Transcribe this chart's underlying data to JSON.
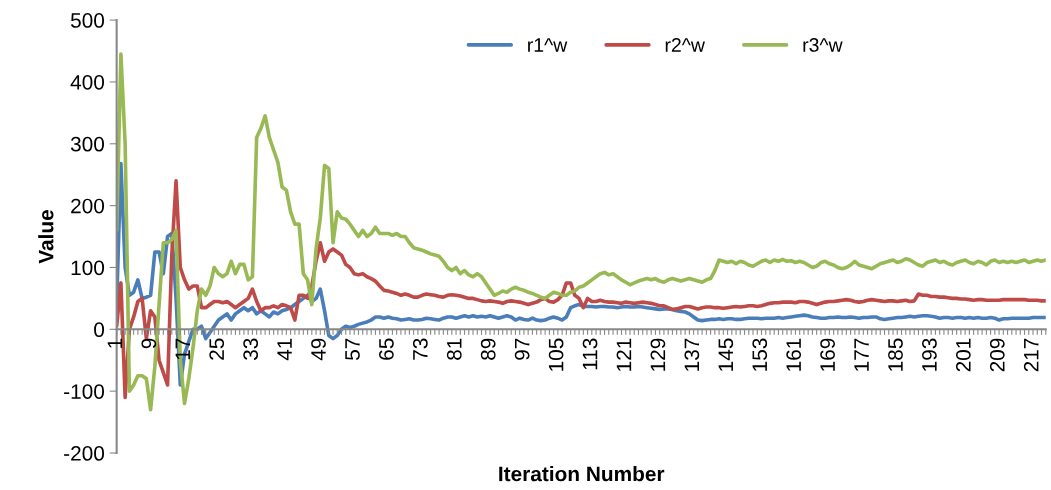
{
  "chart_data": {
    "type": "line",
    "xlabel": "Iteration Number",
    "ylabel": "Value",
    "categories": [
      "1",
      null,
      null,
      null,
      null,
      null,
      null,
      null,
      "9",
      null,
      null,
      null,
      null,
      null,
      null,
      null,
      "17",
      null,
      null,
      null,
      null,
      null,
      null,
      null,
      "25",
      null,
      null,
      null,
      null,
      null,
      null,
      null,
      "33",
      null,
      null,
      null,
      null,
      null,
      null,
      null,
      "41",
      null,
      null,
      null,
      null,
      null,
      null,
      null,
      "49",
      null,
      null,
      null,
      null,
      null,
      null,
      null,
      "57",
      null,
      null,
      null,
      null,
      null,
      null,
      null,
      "65",
      null,
      null,
      null,
      null,
      null,
      null,
      null,
      "73",
      null,
      null,
      null,
      null,
      null,
      null,
      null,
      "81",
      null,
      null,
      null,
      null,
      null,
      null,
      null,
      "89",
      null,
      null,
      null,
      null,
      null,
      null,
      null,
      "97",
      null,
      null,
      null,
      null,
      null,
      null,
      null,
      "105",
      null,
      null,
      null,
      null,
      null,
      null,
      null,
      "113",
      null,
      null,
      null,
      null,
      null,
      null,
      null,
      "121",
      null,
      null,
      null,
      null,
      null,
      null,
      null,
      "129",
      null,
      null,
      null,
      null,
      null,
      null,
      null,
      "137",
      null,
      null,
      null,
      null,
      null,
      null,
      null,
      "145",
      null,
      null,
      null,
      null,
      null,
      null,
      null,
      "153",
      null,
      null,
      null,
      null,
      null,
      null,
      null,
      "161",
      null,
      null,
      null,
      null,
      null,
      null,
      null,
      "169",
      null,
      null,
      null,
      null,
      null,
      null,
      null,
      "177",
      null,
      null,
      null,
      null,
      null,
      null,
      null,
      "185",
      null,
      null,
      null,
      null,
      null,
      null,
      null,
      "193",
      null,
      null,
      null,
      null,
      null,
      null,
      null,
      "201",
      null,
      null,
      null,
      null,
      null,
      null,
      null,
      "209",
      null,
      null,
      null,
      null,
      null,
      null,
      null,
      "217",
      null,
      null,
      null
    ],
    "series": [
      {
        "name": "r1^w",
        "color": "#4a7ebb",
        "values": [
          42,
          268,
          100,
          55,
          60,
          80,
          50,
          52,
          55,
          125,
          125,
          90,
          150,
          155,
          50,
          -90,
          -40,
          -20,
          0,
          0,
          5,
          -15,
          -5,
          5,
          15,
          20,
          25,
          15,
          25,
          30,
          35,
          30,
          35,
          25,
          30,
          25,
          20,
          28,
          25,
          30,
          32,
          35,
          40,
          45,
          50,
          55,
          45,
          50,
          65,
          30,
          -10,
          -15,
          -10,
          0,
          5,
          3,
          5,
          8,
          10,
          12,
          15,
          20,
          20,
          18,
          20,
          18,
          17,
          15,
          16,
          17,
          15,
          15,
          16,
          18,
          17,
          16,
          15,
          18,
          20,
          20,
          18,
          20,
          22,
          20,
          22,
          20,
          21,
          20,
          22,
          20,
          18,
          20,
          22,
          20,
          15,
          18,
          16,
          15,
          18,
          15,
          14,
          15,
          18,
          20,
          18,
          15,
          20,
          35,
          38,
          40,
          37,
          37,
          37,
          36,
          37,
          37,
          36,
          36,
          35,
          36,
          37,
          36,
          36,
          37,
          36,
          35,
          34,
          33,
          32,
          33,
          33,
          32,
          30,
          29,
          28,
          25,
          20,
          15,
          14,
          15,
          16,
          16,
          17,
          16,
          17,
          17,
          16,
          16,
          17,
          18,
          18,
          18,
          17,
          18,
          18,
          18,
          19,
          18,
          19,
          20,
          21,
          22,
          23,
          22,
          20,
          19,
          18,
          18,
          19,
          19,
          20,
          19,
          19,
          20,
          19,
          18,
          19,
          19,
          20,
          20,
          17,
          16,
          17,
          18,
          19,
          19,
          20,
          21,
          20,
          21,
          22,
          22,
          21,
          20,
          18,
          19,
          19,
          18,
          19,
          19,
          18,
          19,
          18,
          19,
          18,
          18,
          19,
          18,
          15,
          17,
          17,
          18,
          18,
          18,
          18,
          18,
          19,
          19,
          19,
          19
        ]
      },
      {
        "name": "r2^w",
        "color": "#be4b48",
        "values": [
          5,
          75,
          -110,
          0,
          20,
          45,
          50,
          -15,
          30,
          20,
          -50,
          -70,
          -90,
          120,
          240,
          100,
          80,
          65,
          70,
          70,
          35,
          35,
          40,
          45,
          45,
          43,
          45,
          40,
          35,
          40,
          45,
          50,
          65,
          45,
          30,
          35,
          35,
          38,
          35,
          40,
          38,
          35,
          15,
          55,
          55,
          50,
          70,
          110,
          140,
          110,
          125,
          130,
          125,
          120,
          105,
          100,
          90,
          88,
          90,
          85,
          82,
          78,
          70,
          63,
          62,
          60,
          58,
          55,
          57,
          55,
          52,
          52,
          55,
          57,
          56,
          55,
          53,
          52,
          55,
          56,
          55,
          54,
          52,
          50,
          50,
          48,
          46,
          45,
          46,
          45,
          44,
          42,
          45,
          46,
          45,
          44,
          42,
          40,
          42,
          44,
          48,
          50,
          45,
          44,
          48,
          55,
          75,
          75,
          55,
          50,
          35,
          50,
          45,
          45,
          47,
          45,
          44,
          44,
          43,
          42,
          44,
          43,
          42,
          43,
          44,
          43,
          42,
          40,
          38,
          38,
          35,
          32,
          33,
          35,
          37,
          37,
          35,
          33,
          35,
          36,
          36,
          35,
          35,
          34,
          35,
          36,
          37,
          36,
          37,
          38,
          38,
          37,
          38,
          40,
          42,
          43,
          43,
          44,
          44,
          44,
          43,
          45,
          45,
          44,
          42,
          40,
          42,
          44,
          45,
          45,
          46,
          47,
          48,
          47,
          45,
          44,
          45,
          47,
          48,
          47,
          46,
          45,
          46,
          46,
          45,
          46,
          47,
          45,
          46,
          57,
          55,
          55,
          53,
          53,
          52,
          52,
          51,
          50,
          50,
          49,
          49,
          48,
          47,
          48,
          48,
          47,
          47,
          47,
          47,
          48,
          48,
          48,
          48,
          48,
          48,
          47,
          47,
          47,
          46,
          46
        ]
      },
      {
        "name": "r3^w",
        "color": "#98b954",
        "values": [
          160,
          445,
          300,
          -100,
          -90,
          -75,
          -75,
          -80,
          -130,
          -60,
          40,
          140,
          140,
          145,
          160,
          -50,
          -120,
          -80,
          -30,
          30,
          65,
          55,
          70,
          100,
          90,
          85,
          90,
          110,
          90,
          105,
          105,
          80,
          85,
          310,
          325,
          345,
          310,
          290,
          270,
          230,
          225,
          190,
          170,
          170,
          90,
          80,
          40,
          130,
          180,
          265,
          260,
          140,
          190,
          180,
          178,
          170,
          160,
          150,
          160,
          150,
          155,
          165,
          155,
          155,
          155,
          152,
          155,
          150,
          150,
          140,
          132,
          130,
          128,
          125,
          122,
          120,
          118,
          110,
          100,
          95,
          100,
          90,
          95,
          88,
          85,
          90,
          85,
          75,
          65,
          55,
          58,
          62,
          60,
          65,
          68,
          65,
          63,
          60,
          58,
          55,
          52,
          50,
          55,
          60,
          58,
          55,
          55,
          60,
          62,
          68,
          70,
          75,
          80,
          85,
          90,
          92,
          88,
          90,
          85,
          80,
          76,
          72,
          75,
          78,
          80,
          82,
          80,
          82,
          78,
          76,
          80,
          82,
          80,
          78,
          80,
          82,
          80,
          78,
          76,
          80,
          82,
          95,
          112,
          110,
          108,
          110,
          106,
          110,
          108,
          104,
          102,
          106,
          110,
          112,
          108,
          112,
          110,
          113,
          110,
          111,
          108,
          110,
          108,
          104,
          100,
          102,
          108,
          110,
          106,
          104,
          100,
          98,
          100,
          104,
          110,
          104,
          102,
          100,
          98,
          102,
          106,
          108,
          110,
          112,
          108,
          110,
          114,
          112,
          108,
          104,
          102,
          108,
          110,
          112,
          108,
          110,
          106,
          104,
          108,
          110,
          112,
          108,
          106,
          110,
          108,
          104,
          110,
          112,
          108,
          110,
          108,
          110,
          108,
          110,
          112,
          108,
          110,
          112,
          110,
          112
        ]
      }
    ],
    "ylim": [
      -200,
      500
    ],
    "yticks": [
      -200,
      -100,
      0,
      100,
      200,
      300,
      400,
      500
    ],
    "grid": false,
    "legend": "top",
    "marker": "none",
    "line_style": "solid"
  }
}
